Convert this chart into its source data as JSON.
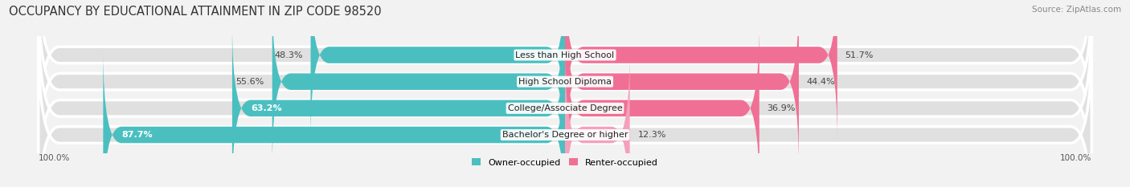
{
  "title": "OCCUPANCY BY EDUCATIONAL ATTAINMENT IN ZIP CODE 98520",
  "source": "Source: ZipAtlas.com",
  "categories": [
    "Less than High School",
    "High School Diploma",
    "College/Associate Degree",
    "Bachelor's Degree or higher"
  ],
  "owner_pct": [
    48.3,
    55.6,
    63.2,
    87.7
  ],
  "renter_pct": [
    51.7,
    44.4,
    36.9,
    12.3
  ],
  "owner_color": "#4bbfc0",
  "renter_color": "#f07095",
  "renter_color_light": "#f5a0bb",
  "bg_color": "#f2f2f2",
  "row_bg_color": "#e8e8e8",
  "title_fontsize": 10.5,
  "source_fontsize": 7.5,
  "label_fontsize": 8,
  "pct_fontsize": 8,
  "axis_label_fontsize": 7.5,
  "legend_fontsize": 8,
  "x_axis_label_left": "100.0%",
  "x_axis_label_right": "100.0%",
  "owner_label": "Owner-occupied",
  "renter_label": "Renter-occupied"
}
